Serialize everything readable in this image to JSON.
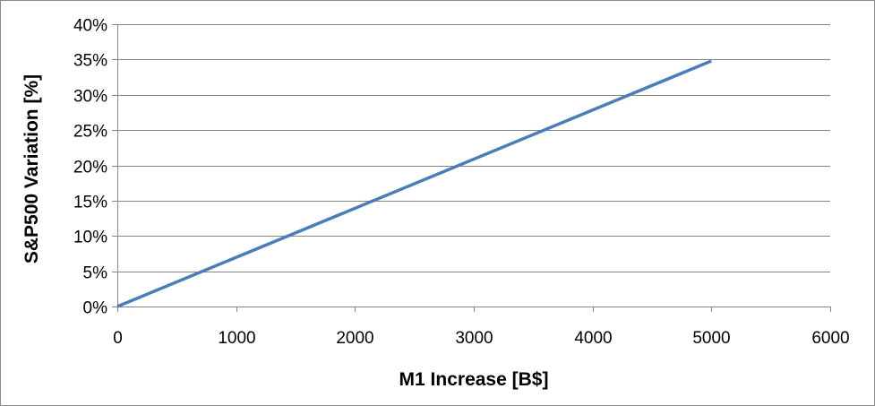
{
  "chart_data": {
    "type": "line",
    "title": "",
    "xlabel": "M1 Increase [B$]",
    "ylabel": "S&P500 Variation [%]",
    "xlim": [
      0,
      6000
    ],
    "ylim": [
      0,
      0.4
    ],
    "x_ticks": [
      0,
      1000,
      2000,
      3000,
      4000,
      5000,
      6000
    ],
    "x_tick_labels": [
      "0",
      "1000",
      "2000",
      "3000",
      "4000",
      "5000",
      "6000"
    ],
    "y_ticks": [
      0,
      0.05,
      0.1,
      0.15,
      0.2,
      0.25,
      0.3,
      0.35,
      0.4
    ],
    "y_tick_labels": [
      "0%",
      "5%",
      "10%",
      "15%",
      "20%",
      "25%",
      "30%",
      "35%",
      "40%"
    ],
    "grid": "horizontal",
    "legend": "none",
    "series": [
      {
        "color": "#4a7ebb",
        "x": [
          0,
          5000
        ],
        "y": [
          0,
          0.348
        ]
      }
    ]
  }
}
